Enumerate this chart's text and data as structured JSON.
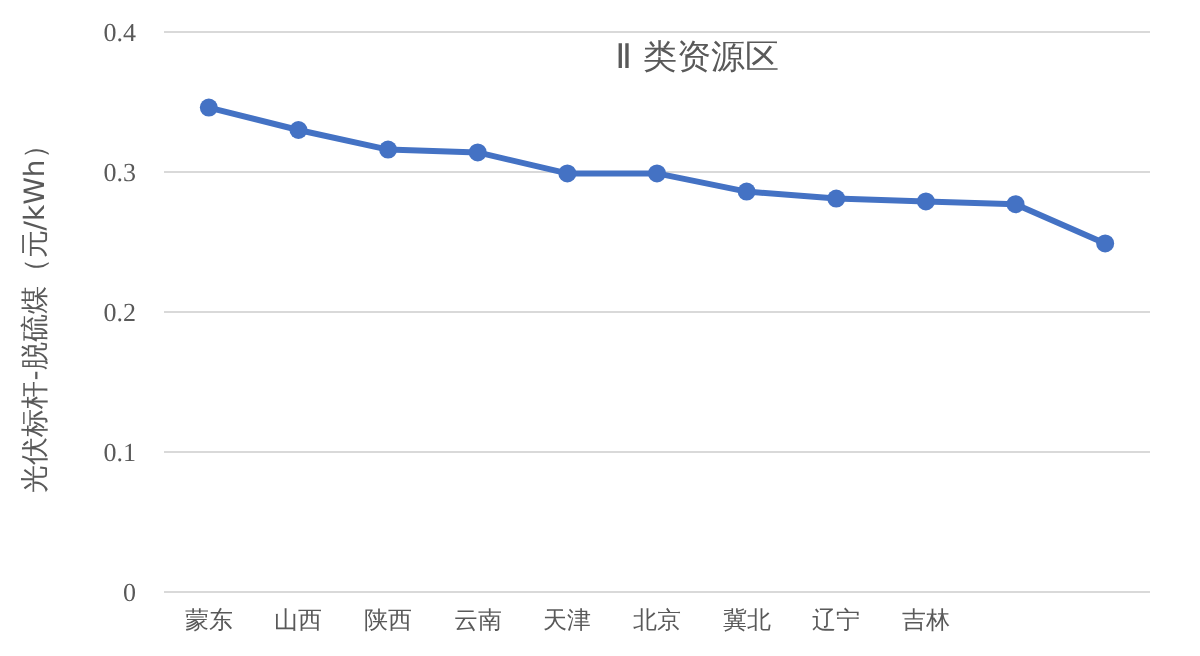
{
  "chart_data": {
    "type": "line",
    "title": "Ⅱ 类资源区",
    "ylabel": "光伏标杆-脱硫煤（元/kWh）",
    "categories": [
      "蒙东",
      "山西",
      "陕西",
      "云南",
      "天津",
      "北京",
      "冀北",
      "辽宁",
      "吉林",
      null,
      null
    ],
    "series": [
      {
        "color": "#4472c4",
        "values": [
          0.346,
          0.33,
          0.316,
          0.314,
          0.299,
          0.299,
          0.286,
          0.281,
          0.279,
          0.277,
          0.249
        ]
      }
    ],
    "ylim": [
      0,
      0.4
    ],
    "yticks": [
      0,
      0.1,
      0.2,
      0.3,
      0.4
    ],
    "grid": "y",
    "marker": "circle",
    "line_style": "solid"
  }
}
